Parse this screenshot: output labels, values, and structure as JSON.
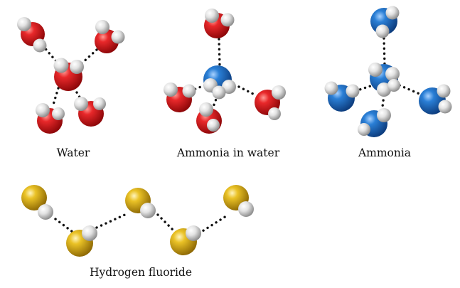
{
  "figure": {
    "panels": [
      {
        "id": "water",
        "caption": "Water"
      },
      {
        "id": "ammonia-in-water",
        "caption": "Ammonia in water"
      },
      {
        "id": "ammonia",
        "caption": "Ammonia"
      },
      {
        "id": "hydrogen-fluoride",
        "caption": "Hydrogen fluoride"
      }
    ]
  },
  "colors": {
    "oxygen": "#d8161b",
    "nitrogen": "#1f6fc4",
    "fluorine": "#e3b614",
    "hydrogen": "#e4e4e4",
    "hbond": "#111111"
  }
}
